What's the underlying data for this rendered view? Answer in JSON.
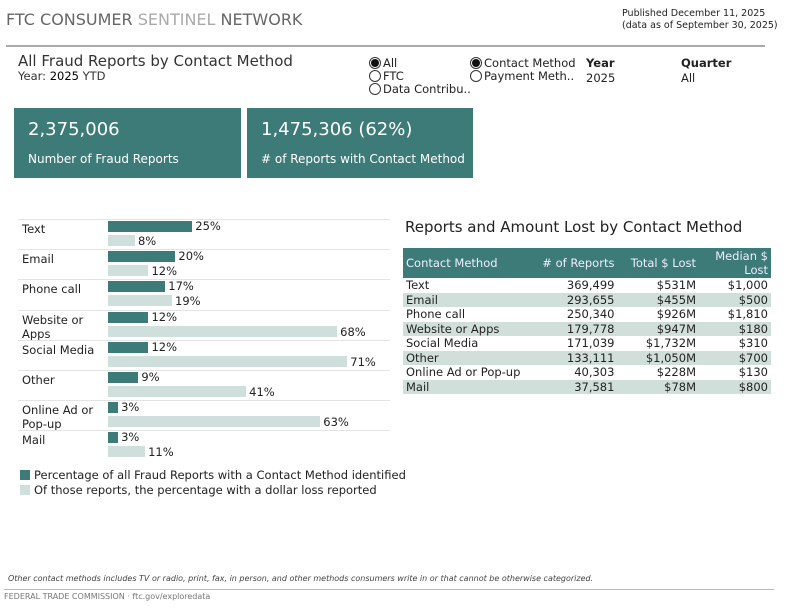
{
  "header": {
    "brand_a": "FTC CONSUMER ",
    "brand_b": "SENTINEL ",
    "brand_c": "NETWORK",
    "published": "Published December 11, 2025",
    "data_as_of": "(data as of September 30, 2025)"
  },
  "report": {
    "title": "All Fraud Reports by Contact Method",
    "year_label": "Year: ",
    "year_value": "2025",
    "ytd": " YTD"
  },
  "source_radios": [
    {
      "label": "All",
      "selected": true
    },
    {
      "label": "FTC",
      "selected": false
    },
    {
      "label": "Data Contribu..",
      "selected": false
    }
  ],
  "method_radios": [
    {
      "label": "Contact Method",
      "selected": true
    },
    {
      "label": "Payment Meth..",
      "selected": false
    }
  ],
  "filters": {
    "year_label": "Year",
    "year_value": "2025",
    "quarter_label": "Quarter",
    "quarter_value": "All"
  },
  "kpis": [
    {
      "value": "2,375,006",
      "label": "Number of Fraud Reports"
    },
    {
      "value": "1,475,306 (62%)",
      "label": "# of Reports with Contact Method"
    }
  ],
  "colors": {
    "primary": "#3d7b79",
    "light": "#cfdfdb"
  },
  "chart_data": {
    "type": "bar",
    "orientation": "horizontal",
    "categories": [
      "Text",
      "Email",
      "Phone call",
      "Website or Apps",
      "Social Media",
      "Other",
      "Online Ad or Pop-up",
      "Mail"
    ],
    "series": [
      {
        "name": "Percentage of all Fraud Reports with a Contact Method identified",
        "values": [
          25,
          20,
          17,
          12,
          12,
          9,
          3,
          3
        ]
      },
      {
        "name": "Of those reports, the percentage with a dollar loss reported",
        "values": [
          8,
          12,
          19,
          68,
          71,
          41,
          63,
          11
        ]
      }
    ],
    "value_suffix": "%",
    "legend": "bottom"
  },
  "table": {
    "title": "Reports and Amount Lost by Contact Method",
    "headers": [
      "Contact Method",
      "# of Reports",
      "Total $ Lost",
      "Median $ Lost"
    ],
    "rows": [
      [
        "Text",
        "369,499",
        "$531M",
        "$1,000"
      ],
      [
        "Email",
        "293,655",
        "$455M",
        "$500"
      ],
      [
        "Phone call",
        "250,340",
        "$926M",
        "$1,810"
      ],
      [
        "Website or Apps",
        "179,778",
        "$947M",
        "$180"
      ],
      [
        "Social Media",
        "171,039",
        "$1,732M",
        "$310"
      ],
      [
        "Other",
        "133,111",
        "$1,050M",
        "$700"
      ],
      [
        "Online Ad or Pop-up",
        "40,303",
        "$228M",
        "$130"
      ],
      [
        "Mail",
        "37,581",
        "$78M",
        "$800"
      ]
    ]
  },
  "footer": {
    "note": "Other contact methods includes TV or radio, print, fax, in person, and other methods consumers write in or that cannot be otherwise categorized.",
    "credit": "FEDERAL TRADE COMMISSION · ftc.gov/exploredata"
  }
}
